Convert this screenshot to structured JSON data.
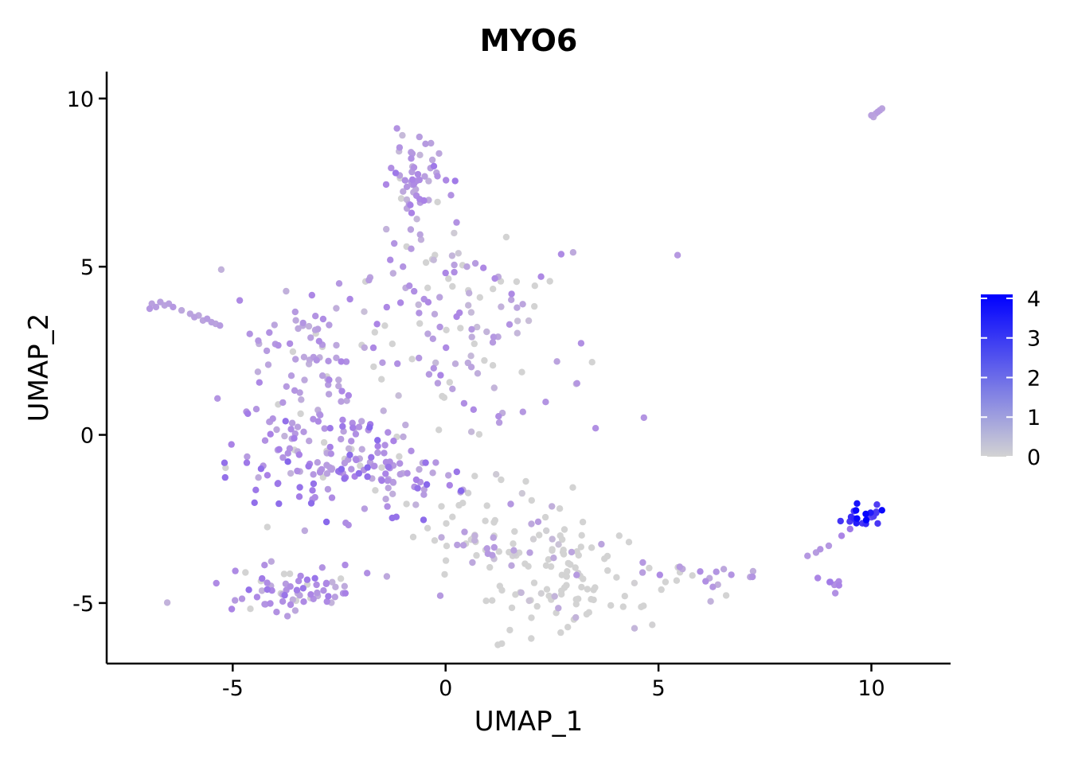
{
  "chart_data": {
    "type": "scatter",
    "title": "MYO6",
    "xlabel": "UMAP_1",
    "ylabel": "UMAP_2",
    "xlim": [
      -7.96,
      11.86
    ],
    "ylim": [
      -6.8,
      10.8
    ],
    "x_ticks": [
      -5,
      0,
      5,
      10
    ],
    "x_tick_labels": [
      "-5",
      "0",
      "5",
      "10"
    ],
    "y_ticks": [
      -5,
      0,
      5,
      10
    ],
    "y_tick_labels": [
      "-5",
      "0",
      "5",
      "10"
    ],
    "grid": false,
    "legend_position": "right",
    "color_scale": {
      "min": 0,
      "max": 4.1,
      "low_color": "#d3d3d3",
      "high_color": "#0000ff",
      "ticks": [
        0,
        1,
        2,
        3,
        4
      ],
      "tick_labels": [
        "0",
        "1",
        "2",
        "3",
        "4"
      ]
    },
    "clusters": [
      {
        "cx": -0.7,
        "cy": 7.5,
        "sx": 0.35,
        "sy": 0.75,
        "n": 60,
        "low": 0.6,
        "high": 2.2,
        "zero_frac": 0.1
      },
      {
        "cx": 0.3,
        "cy": 3.3,
        "sx": 1.6,
        "sy": 1.4,
        "n": 130,
        "low": 0.5,
        "high": 2.0,
        "zero_frac": 0.3
      },
      {
        "cx": -3.3,
        "cy": 2.2,
        "sx": 0.6,
        "sy": 1.0,
        "n": 60,
        "low": 0.8,
        "high": 2.0,
        "zero_frac": 0.05
      },
      {
        "cx": -3.0,
        "cy": -0.7,
        "sx": 1.2,
        "sy": 0.9,
        "n": 140,
        "low": 0.8,
        "high": 2.5,
        "zero_frac": 0.08
      },
      {
        "cx": -1.3,
        "cy": -1.2,
        "sx": 0.8,
        "sy": 0.7,
        "n": 50,
        "low": 0.8,
        "high": 2.5,
        "zero_frac": 0.1
      },
      {
        "cx": -3.5,
        "cy": -4.6,
        "sx": 0.9,
        "sy": 0.35,
        "n": 70,
        "low": 0.8,
        "high": 2.3,
        "zero_frac": 0.08
      },
      {
        "cx": 1.5,
        "cy": -3.3,
        "sx": 1.2,
        "sy": 0.9,
        "n": 90,
        "low": 0.0,
        "high": 1.5,
        "zero_frac": 0.6
      },
      {
        "cx": 3.0,
        "cy": -4.5,
        "sx": 1.1,
        "sy": 0.9,
        "n": 70,
        "low": 0.0,
        "high": 1.2,
        "zero_frac": 0.75
      },
      {
        "cx": 6.0,
        "cy": -4.2,
        "sx": 0.8,
        "sy": 0.25,
        "n": 22,
        "low": 0.8,
        "high": 1.8,
        "zero_frac": 0.1
      },
      {
        "cx": 9.1,
        "cy": -4.3,
        "sx": 0.15,
        "sy": 0.2,
        "n": 8,
        "low": 1.5,
        "high": 2.2,
        "zero_frac": 0.0
      },
      {
        "cx": 9.8,
        "cy": -2.4,
        "sx": 0.2,
        "sy": 0.2,
        "n": 22,
        "low": 2.8,
        "high": 4.1,
        "zero_frac": 0.0
      }
    ],
    "arm_points": [
      [
        -6.9,
        3.9,
        1.3
      ],
      [
        -6.8,
        3.8,
        1.4
      ],
      [
        -6.6,
        3.85,
        1.2
      ],
      [
        -6.5,
        3.9,
        1.3
      ],
      [
        -6.4,
        3.8,
        1.5
      ],
      [
        -6.2,
        3.7,
        1.1
      ],
      [
        -6.0,
        3.6,
        1.2
      ],
      [
        -5.9,
        3.5,
        1.3
      ],
      [
        -5.7,
        3.4,
        1.2
      ],
      [
        -5.6,
        3.45,
        1.4
      ],
      [
        -5.5,
        3.35,
        1.3
      ],
      [
        -5.4,
        3.3,
        1.2
      ],
      [
        -5.3,
        3.25,
        1.4
      ],
      [
        -6.95,
        3.75,
        1.5
      ],
      [
        -6.7,
        3.95,
        1.3
      ],
      [
        -5.8,
        3.55,
        1.1
      ],
      [
        10.0,
        9.5,
        1.3
      ],
      [
        10.1,
        9.55,
        1.2
      ],
      [
        10.15,
        9.6,
        1.4
      ],
      [
        10.2,
        9.65,
        1.3
      ],
      [
        10.25,
        9.7,
        1.2
      ],
      [
        10.05,
        9.45,
        1.1
      ],
      [
        -4.6,
        3.0,
        1.6
      ],
      [
        -4.4,
        2.8,
        1.5
      ],
      [
        -4.2,
        2.5,
        1.4
      ],
      [
        -4.0,
        2.7,
        1.5
      ],
      [
        8.5,
        -3.6,
        1.5
      ],
      [
        8.7,
        -3.5,
        1.4
      ],
      [
        8.8,
        -3.4,
        1.6
      ],
      [
        9.0,
        -3.3,
        1.5
      ],
      [
        9.3,
        -3.0,
        2.0
      ],
      [
        9.5,
        -2.8,
        2.2
      ],
      [
        -2.5,
        4.5,
        1.5
      ],
      [
        -1.8,
        4.6,
        1.4
      ],
      [
        -1.3,
        5.2,
        1.8
      ],
      [
        -1.0,
        5.0,
        1.6
      ],
      [
        0.3,
        5.4,
        0.3
      ],
      [
        0.5,
        5.0,
        1.2
      ],
      [
        0.7,
        5.1,
        1.4
      ],
      [
        0.2,
        6.0,
        0.2
      ]
    ]
  }
}
